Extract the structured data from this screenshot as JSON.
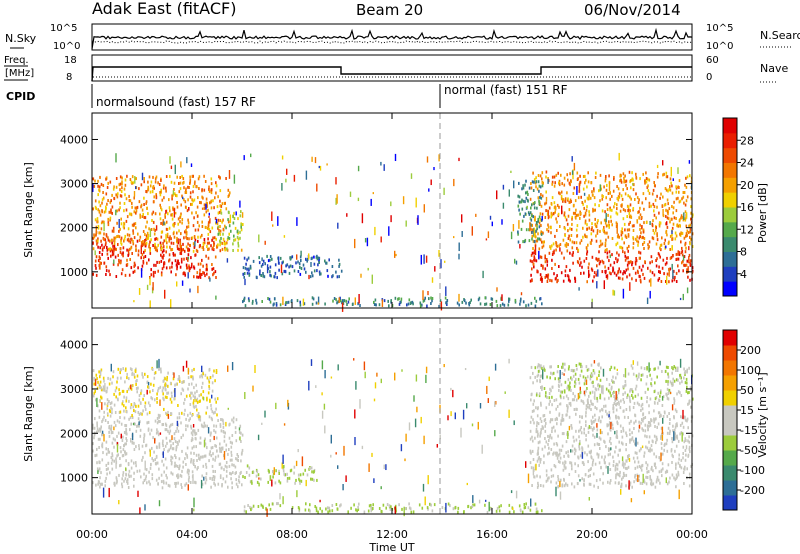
{
  "header": {
    "station": "Adak East (fitACF)",
    "beam": "Beam 20",
    "date": "06/Nov/2014"
  },
  "summary": {
    "nsky_label": "N.Sky",
    "nsearch_label": "N.Search",
    "freq_label_1": "Freq.",
    "freq_label_2": "[MHz]",
    "nave_label": "Nave",
    "cpid_label": "CPID",
    "noise_ticks": [
      "10^5",
      "10^0"
    ],
    "freq_ticks": [
      "18",
      "8"
    ],
    "nave_ticks": [
      "60",
      "0"
    ],
    "cpid_segments": [
      {
        "label": "normalsound (fast) 157 RF",
        "start_hour": 0
      },
      {
        "label": "normal (fast) 151 RF",
        "start_hour": 14
      }
    ]
  },
  "power_colorbar": {
    "title": "Power [dB]",
    "ticks": [
      "28",
      "24",
      "20",
      "16",
      "12",
      "8",
      "4"
    ],
    "colors": [
      "#0000ff",
      "#1f3fbf",
      "#2d6e96",
      "#3a8a6e",
      "#55a94b",
      "#9ccc3c",
      "#f0d000",
      "#f5a000",
      "#f27600",
      "#ee4a00",
      "#ea1e00",
      "#e00000"
    ]
  },
  "velocity_colorbar": {
    "title": "Velocity [m s⁻¹]",
    "ticks": [
      "200",
      "100",
      "50",
      "15",
      "-15",
      "-50",
      "-100",
      "-200"
    ],
    "colors": [
      "#1f3fbf",
      "#2d6e96",
      "#3a8a6e",
      "#55a94b",
      "#9ccc3c",
      "#c8c8c0",
      "#c8c8c0",
      "#f0d000",
      "#f5a000",
      "#f27600",
      "#ee4a00",
      "#e00000"
    ]
  },
  "axes": {
    "ylabel": "Slant Range [km]",
    "yticks": [
      "1000",
      "2000",
      "3000",
      "4000"
    ],
    "xlabel": "Time UT",
    "xticks": [
      "00:00",
      "04:00",
      "08:00",
      "12:00",
      "16:00",
      "20:00",
      "00:00"
    ]
  },
  "chart_data": [
    {
      "type": "heatmap",
      "title": "Power [dB]",
      "xlabel": "Time UT",
      "ylabel": "Slant Range [km]",
      "xlim": [
        0,
        24
      ],
      "ylim": [
        180,
        4600
      ],
      "clim": [
        0,
        30
      ],
      "regions": [
        {
          "x": [
            0,
            5
          ],
          "y": [
            900,
            1800
          ],
          "value": 26
        },
        {
          "x": [
            0,
            5.5
          ],
          "y": [
            1500,
            3200
          ],
          "value": 20
        },
        {
          "x": [
            5,
            6
          ],
          "y": [
            1500,
            2400
          ],
          "value": 14
        },
        {
          "x": [
            6,
            10
          ],
          "y": [
            900,
            1400
          ],
          "value": 6
        },
        {
          "x": [
            17.5,
            24
          ],
          "y": [
            800,
            1500
          ],
          "value": 26
        },
        {
          "x": [
            17.5,
            24
          ],
          "y": [
            1500,
            3300
          ],
          "value": 20
        },
        {
          "x": [
            17,
            18
          ],
          "y": [
            1700,
            3100
          ],
          "value": 9
        },
        {
          "x": [
            6,
            18
          ],
          "y": [
            250,
            450
          ],
          "value": 8
        }
      ]
    },
    {
      "type": "heatmap",
      "title": "Velocity [m s⁻¹]",
      "xlabel": "Time UT",
      "ylabel": "Slant Range [km]",
      "xlim": [
        0,
        24
      ],
      "ylim": [
        180,
        4600
      ],
      "clim": [
        -200,
        200
      ],
      "regions": [
        {
          "x": [
            0,
            6
          ],
          "y": [
            800,
            2400
          ],
          "value": 0
        },
        {
          "x": [
            0,
            5
          ],
          "y": [
            2400,
            3500
          ],
          "value": -30
        },
        {
          "x": [
            6,
            9
          ],
          "y": [
            900,
            1300
          ],
          "value": 40
        },
        {
          "x": [
            17.5,
            24
          ],
          "y": [
            800,
            2800
          ],
          "value": 0
        },
        {
          "x": [
            17.5,
            24
          ],
          "y": [
            2800,
            3600
          ],
          "value": 30
        },
        {
          "x": [
            6,
            18
          ],
          "y": [
            250,
            450
          ],
          "value": 40
        }
      ]
    }
  ]
}
